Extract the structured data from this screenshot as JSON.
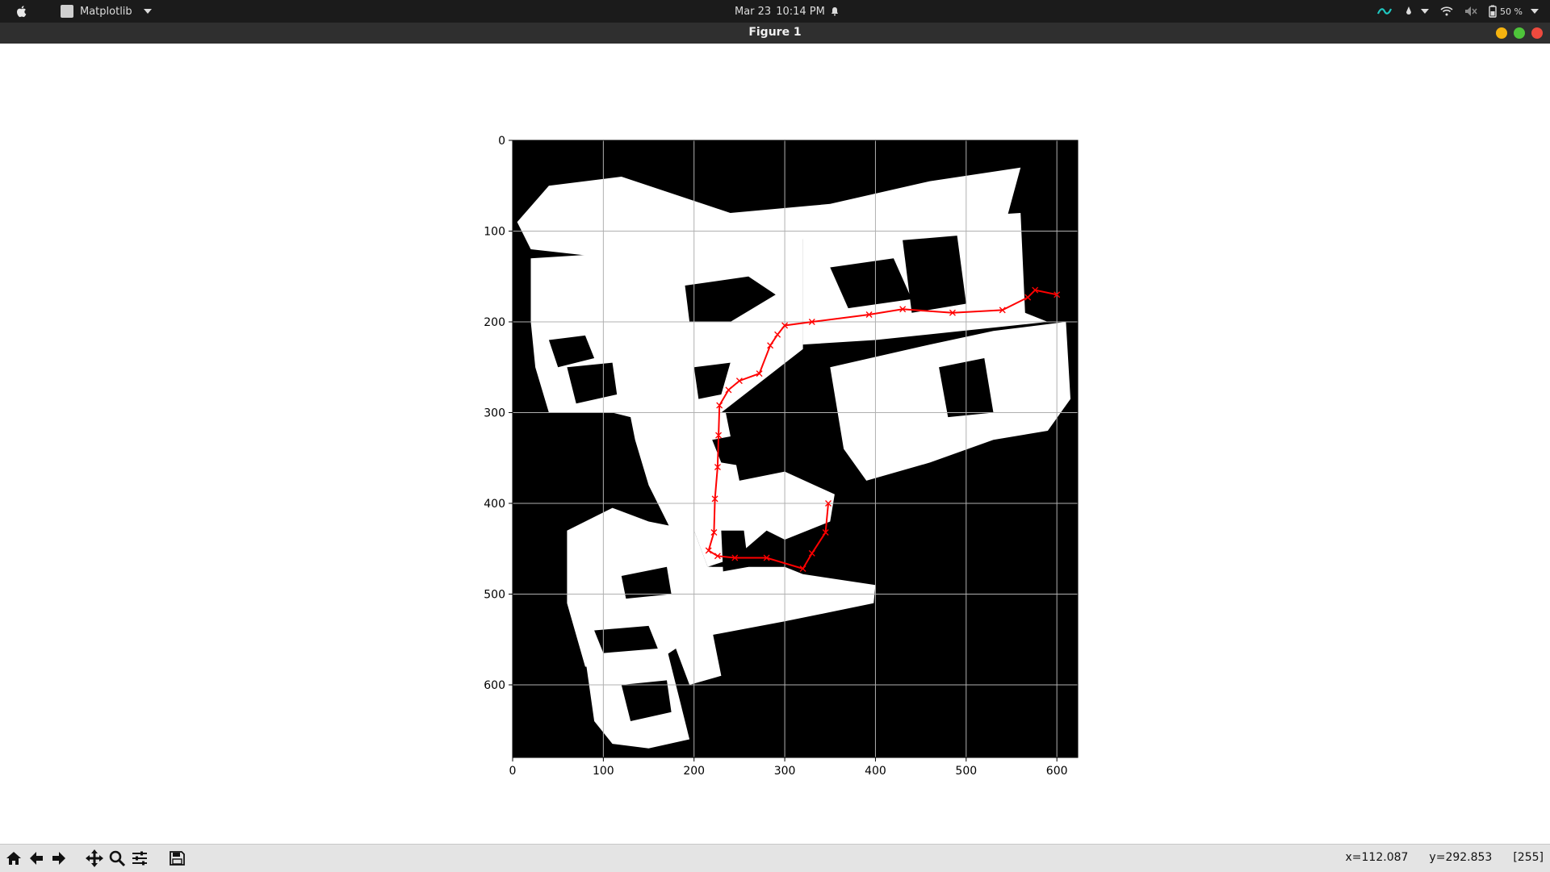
{
  "topbar": {
    "app_name": "Matplotlib",
    "date": "Mar 23",
    "time": "10:14 PM",
    "battery": "50 %"
  },
  "window": {
    "title": "Figure 1"
  },
  "toolbar": {
    "buttons": [
      "home-icon",
      "back-arrow-icon",
      "forward-arrow-icon",
      "pan-icon",
      "zoom-icon",
      "configure-subplots-icon",
      "save-icon"
    ],
    "coord_x": "x=112.087",
    "coord_y": "y=292.853",
    "pixel_value": "[255]"
  },
  "colors": {
    "path": "#ff0000",
    "map_free": "#ffffff",
    "map_occupied": "#000000",
    "grid": "#b0b0b0"
  },
  "chart_data": {
    "type": "line",
    "background": "occupancy-grid image (white free space on black)",
    "xlim": [
      0,
      623
    ],
    "ylim": [
      680,
      0
    ],
    "x_ticks": [
      0,
      100,
      200,
      300,
      400,
      500,
      600
    ],
    "y_ticks": [
      0,
      100,
      200,
      300,
      400,
      500,
      600
    ],
    "grid": true,
    "marker": "x",
    "series": [
      {
        "points": [
          [
            600,
            170
          ],
          [
            576,
            165
          ],
          [
            568,
            173
          ],
          [
            540,
            187
          ],
          [
            485,
            190
          ],
          [
            430,
            186
          ],
          [
            393,
            192
          ],
          [
            330,
            200
          ],
          [
            300,
            204
          ],
          [
            292,
            214
          ],
          [
            284,
            226
          ],
          [
            272,
            257
          ],
          [
            250,
            265
          ],
          [
            238,
            275
          ],
          [
            228,
            292
          ],
          [
            227,
            325
          ],
          [
            226,
            360
          ],
          [
            223,
            395
          ],
          [
            222,
            432
          ],
          [
            216,
            452
          ],
          [
            226,
            458
          ],
          [
            245,
            460
          ],
          [
            280,
            460
          ],
          [
            320,
            472
          ],
          [
            330,
            455
          ],
          [
            345,
            432
          ],
          [
            348,
            400
          ]
        ]
      }
    ]
  }
}
